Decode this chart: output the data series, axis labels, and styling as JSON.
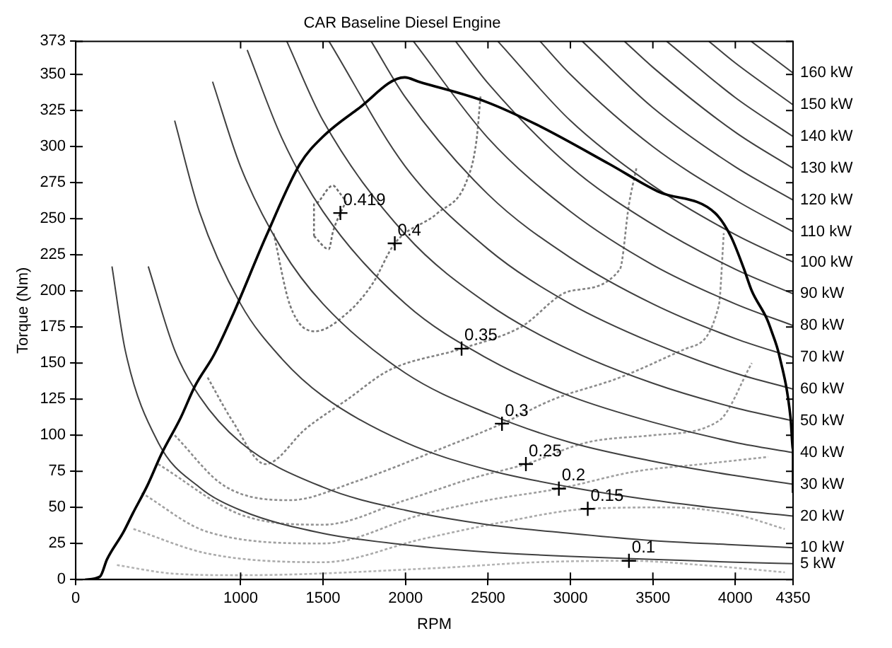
{
  "chart_data": {
    "type": "line",
    "title": "CAR Baseline Diesel Engine",
    "xlabel": "RPM",
    "ylabel": "Torque (Nm)",
    "xlim": [
      0,
      4350
    ],
    "xticks": [
      0,
      1000,
      1500,
      2000,
      2500,
      3000,
      3500,
      4000,
      4350
    ],
    "ylim": [
      0,
      373
    ],
    "yticks": [
      0,
      25,
      50,
      75,
      100,
      125,
      150,
      175,
      200,
      225,
      250,
      275,
      300,
      325,
      350,
      373
    ],
    "grid": false,
    "legend": false,
    "marker": "none",
    "line_style": "solid",
    "series": [
      {
        "color": "#000000",
        "x": [
          58,
          147,
          190,
          290,
          347,
          434,
          520,
          636,
          723,
          840,
          955,
          1155,
          1360,
          1500,
          1710,
          1995,
          2080,
          2490,
          2800,
          3235,
          3530,
          3877,
          3972,
          4050,
          4100,
          4190,
          4220,
          4265,
          4335,
          4350,
          4350
        ],
        "values": [
          0,
          2,
          14,
          33,
          46,
          65,
          87,
          112,
          134,
          156,
          184,
          238,
          288,
          307,
          326,
          348,
          345,
          331,
          315,
          288,
          269,
          254,
          238,
          216,
          200,
          181,
          172,
          156,
          112,
          90,
          60
        ]
      },
      {
        "name": "5 kW",
        "color": "#404040",
        "x": [
          220,
          300,
          500,
          750,
          1000,
          1500,
          2000,
          2500,
          3000,
          3500,
          4000,
          4350
        ],
        "values": [
          217,
          159,
          95,
          64,
          48,
          32,
          24,
          19,
          16,
          14,
          12,
          11
        ]
      },
      {
        "name": "10 kW",
        "color": "#404040",
        "x": [
          440,
          600,
          750,
          1000,
          1500,
          2000,
          2500,
          3000,
          3500,
          4000,
          4350
        ],
        "values": [
          217,
          159,
          127,
          95,
          64,
          48,
          38,
          32,
          27,
          24,
          22
        ]
      },
      {
        "name": "20 kW",
        "color": "#404040",
        "x": [
          600,
          750,
          1000,
          1250,
          1500,
          2000,
          2500,
          3000,
          3500,
          4000,
          4350
        ],
        "values": [
          318,
          255,
          191,
          153,
          127,
          95,
          76,
          64,
          55,
          48,
          44
        ]
      },
      {
        "name": "30 kW",
        "color": "#404040",
        "x": [
          830,
          1000,
          1250,
          1500,
          2000,
          2500,
          3000,
          3500,
          4000,
          4350
        ],
        "values": [
          345,
          286,
          229,
          191,
          143,
          115,
          95,
          82,
          72,
          66
        ]
      },
      {
        "name": "40 kW",
        "color": "#404040",
        "x": [
          1040,
          1250,
          1500,
          2000,
          2500,
          3000,
          3500,
          4000,
          4350
        ],
        "values": [
          367,
          306,
          255,
          191,
          153,
          127,
          109,
          95,
          88
        ]
      },
      {
        "name": "50 kW",
        "color": "#404040",
        "x": [
          1280,
          1500,
          2000,
          2500,
          3000,
          3500,
          4000,
          4350
        ],
        "values": [
          373,
          318,
          239,
          191,
          159,
          136,
          119,
          110
        ]
      },
      {
        "name": "60 kW",
        "color": "#404040",
        "x": [
          1536,
          2000,
          2500,
          3000,
          3500,
          4000,
          4350
        ],
        "values": [
          373,
          286,
          229,
          191,
          164,
          143,
          132
        ]
      },
      {
        "name": "70 kW",
        "color": "#404040",
        "x": [
          1792,
          2000,
          2500,
          3000,
          3500,
          4000,
          4350
        ],
        "values": [
          373,
          334,
          267,
          223,
          191,
          167,
          154
        ]
      },
      {
        "name": "80 kW",
        "color": "#404040",
        "x": [
          2048,
          2500,
          3000,
          3500,
          4000,
          4350
        ],
        "values": [
          373,
          306,
          255,
          218,
          191,
          176
        ]
      },
      {
        "name": "90 kW",
        "color": "#404040",
        "x": [
          2304,
          2500,
          3000,
          3500,
          4000,
          4350
        ],
        "values": [
          373,
          344,
          286,
          246,
          215,
          198
        ]
      },
      {
        "name": "100 kW",
        "color": "#404040",
        "x": [
          2560,
          3000,
          3500,
          4000,
          4350
        ],
        "values": [
          373,
          318,
          273,
          239,
          220
        ]
      },
      {
        "name": "110 kW",
        "color": "#404040",
        "x": [
          2816,
          3000,
          3500,
          4000,
          4350
        ],
        "values": [
          373,
          350,
          300,
          263,
          241
        ]
      },
      {
        "name": "120 kW",
        "color": "#404040",
        "x": [
          3072,
          3500,
          4000,
          4350
        ],
        "values": [
          373,
          327,
          286,
          263
        ]
      },
      {
        "name": "130 kW",
        "color": "#404040",
        "x": [
          3328,
          3500,
          4000,
          4350
        ],
        "values": [
          373,
          355,
          310,
          285
        ]
      },
      {
        "name": "140 kW",
        "color": "#404040",
        "x": [
          3584,
          4000,
          4350
        ],
        "values": [
          373,
          334,
          307
        ]
      },
      {
        "name": "150 kW",
        "color": "#404040",
        "x": [
          3840,
          4000,
          4350
        ],
        "values": [
          373,
          358,
          329
        ]
      },
      {
        "name": "160 kW",
        "color": "#404040",
        "x": [
          4096,
          4350
        ],
        "values": [
          373,
          351
        ]
      },
      {
        "color": "#6e6e6e",
        "line_style": "dotted",
        "x": [
          1445,
          1445,
          1560,
          1600,
          1640
        ],
        "values": [
          238,
          260,
          273,
          268,
          262
        ]
      },
      {
        "color": "#6e6e6e",
        "line_style": "dotted",
        "x": [
          1445,
          1535,
          1560,
          1605,
          1640
        ],
        "values": [
          238,
          229,
          241,
          254,
          262
        ]
      },
      {
        "color": "#787878",
        "line_style": "dotted",
        "x": [
          1200,
          1300,
          1450,
          1650,
          1800,
          1935,
          2195,
          2370,
          2430,
          2455
        ],
        "values": [
          240,
          190,
          172,
          185,
          205,
          233,
          254,
          276,
          304,
          335
        ]
      },
      {
        "color": "#828282",
        "line_style": "dotted",
        "x": [
          800,
          950,
          1150,
          1400,
          1650,
          1900,
          2340,
          2700,
          3000,
          3300,
          3355,
          3400
        ],
        "values": [
          140,
          110,
          80,
          105,
          125,
          145,
          160,
          175,
          200,
          215,
          260,
          285
        ]
      },
      {
        "color": "#8c8c8c",
        "line_style": "dotted",
        "x": [
          600,
          900,
          1300,
          1700,
          2200,
          2585,
          2900,
          3300,
          3700,
          3900,
          3930
        ],
        "values": [
          100,
          65,
          55,
          68,
          90,
          108,
          125,
          140,
          160,
          190,
          240
        ]
      },
      {
        "color": "#969696",
        "line_style": "dotted",
        "x": [
          500,
          1000,
          1500,
          2000,
          2400,
          2730,
          3100,
          3500,
          3900,
          4100
        ],
        "values": [
          80,
          45,
          38,
          55,
          70,
          80,
          95,
          100,
          110,
          150
        ]
      },
      {
        "color": "#a0a0a0",
        "line_style": "dotted",
        "x": [
          400,
          800,
          1500,
          2100,
          2500,
          2930,
          3400,
          3800,
          4200
        ],
        "values": [
          60,
          33,
          25,
          45,
          55,
          63,
          75,
          80,
          85
        ]
      },
      {
        "color": "#aaaaaa",
        "line_style": "dotted",
        "x": [
          350,
          800,
          1500,
          2100,
          2600,
          3105,
          3600,
          4000,
          4300
        ],
        "values": [
          35,
          18,
          12,
          28,
          40,
          49,
          50,
          45,
          35
        ]
      },
      {
        "color": "#b4b4b4",
        "line_style": "dotted",
        "x": [
          250,
          600,
          1000,
          2200,
          2800,
          3355,
          3800,
          4300
        ],
        "values": [
          10,
          4,
          3,
          8,
          12,
          13,
          10,
          5
        ]
      }
    ],
    "annotations": [
      {
        "text": "0.419",
        "x": 1605,
        "y": 254
      },
      {
        "text": "0.4",
        "x": 1935,
        "y": 233
      },
      {
        "text": "0.35",
        "x": 2340,
        "y": 160
      },
      {
        "text": "0.3",
        "x": 2585,
        "y": 108
      },
      {
        "text": "0.25",
        "x": 2730,
        "y": 80
      },
      {
        "text": "0.2",
        "x": 2930,
        "y": 63
      },
      {
        "text": "0.15",
        "x": 3105,
        "y": 49
      },
      {
        "text": "0.1",
        "x": 3355,
        "y": 13
      }
    ]
  }
}
